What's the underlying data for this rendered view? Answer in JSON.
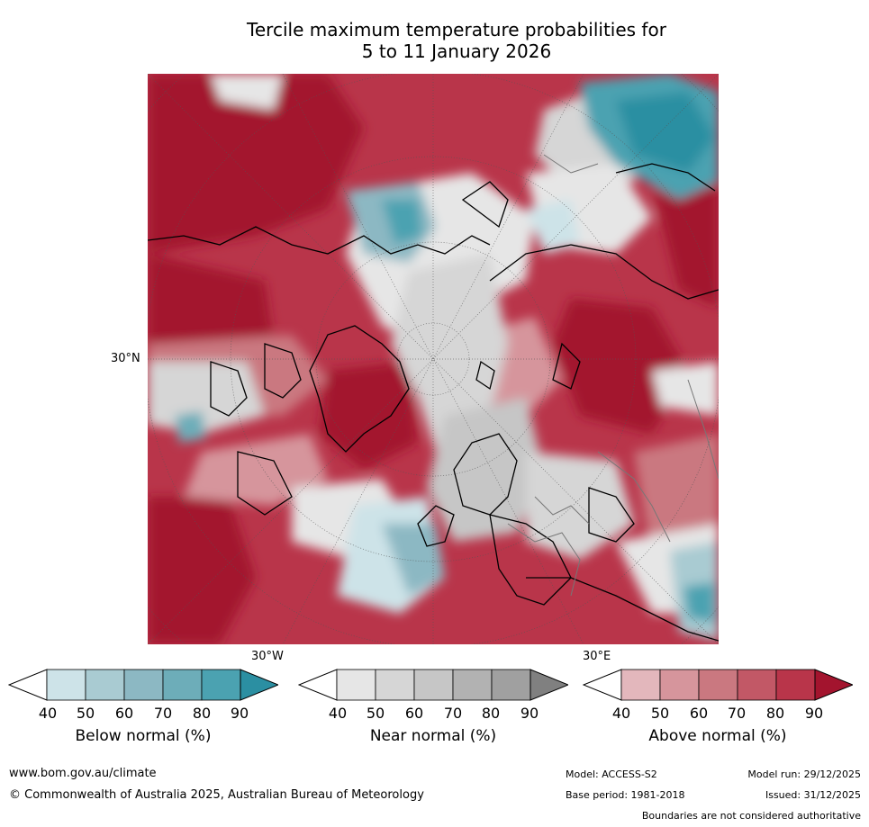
{
  "title": {
    "line1": "Tercile maximum temperature probabilities for",
    "line2": "5 to 11 January 2026"
  },
  "map": {
    "lat_label": "30°N",
    "lon_labels": [
      "30°W",
      "30°E"
    ]
  },
  "legend": {
    "bars": [
      {
        "label": "Below normal (%)",
        "colors": [
          "#cde3e8",
          "#a9cbd2",
          "#8cb8c3",
          "#6dadb9",
          "#4ba2b1",
          "#2b8fa2"
        ]
      },
      {
        "label": "Near normal (%)",
        "colors": [
          "#e6e6e6",
          "#d6d6d6",
          "#c6c6c6",
          "#b2b2b2",
          "#a0a0a0",
          "#808080"
        ]
      },
      {
        "label": "Above normal (%)",
        "colors": [
          "#e3b7bc",
          "#d6959c",
          "#ca7880",
          "#c25866",
          "#b9354a",
          "#a3142e"
        ]
      }
    ],
    "ticks": [
      "40",
      "50",
      "60",
      "70",
      "80",
      "90"
    ]
  },
  "footer": {
    "website": "www.bom.gov.au/climate",
    "copyright": "© Commonwealth of Australia 2025, Australian Bureau of Meteorology",
    "model": "Model: ACCESS-S2",
    "base_period": "Base period: 1981-2018",
    "model_run": "Model run: 29/12/2025",
    "issued": "Issued: 31/12/2025",
    "disclaimer": "Boundaries are not considered authoritative"
  }
}
